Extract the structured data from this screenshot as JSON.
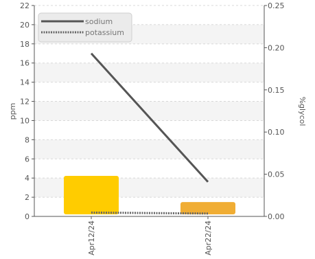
{
  "chart_data": {
    "type": "bar+line",
    "categories": [
      "Apr12/24",
      "Apr22/24"
    ],
    "left_axis": {
      "label": "ppm",
      "min": 0,
      "max": 22,
      "step": 2
    },
    "right_axis": {
      "label": "%glycol",
      "min": 0,
      "max": 0.25,
      "step": 0.05
    },
    "bars": {
      "axis": "right",
      "values": [
        0.048,
        0.017
      ],
      "colors": [
        "#ffcc00",
        "#f0ad34"
      ]
    },
    "series": [
      {
        "name": "sodium",
        "axis": "left",
        "values": [
          17.0,
          3.6
        ],
        "color": "#555555",
        "style": "solid"
      },
      {
        "name": "potassium",
        "axis": "left",
        "values": [
          0.4,
          0.3
        ],
        "color": "#666666",
        "style": "dotted"
      }
    ],
    "legend_position": "top-left",
    "grid": "horizontal bands"
  }
}
